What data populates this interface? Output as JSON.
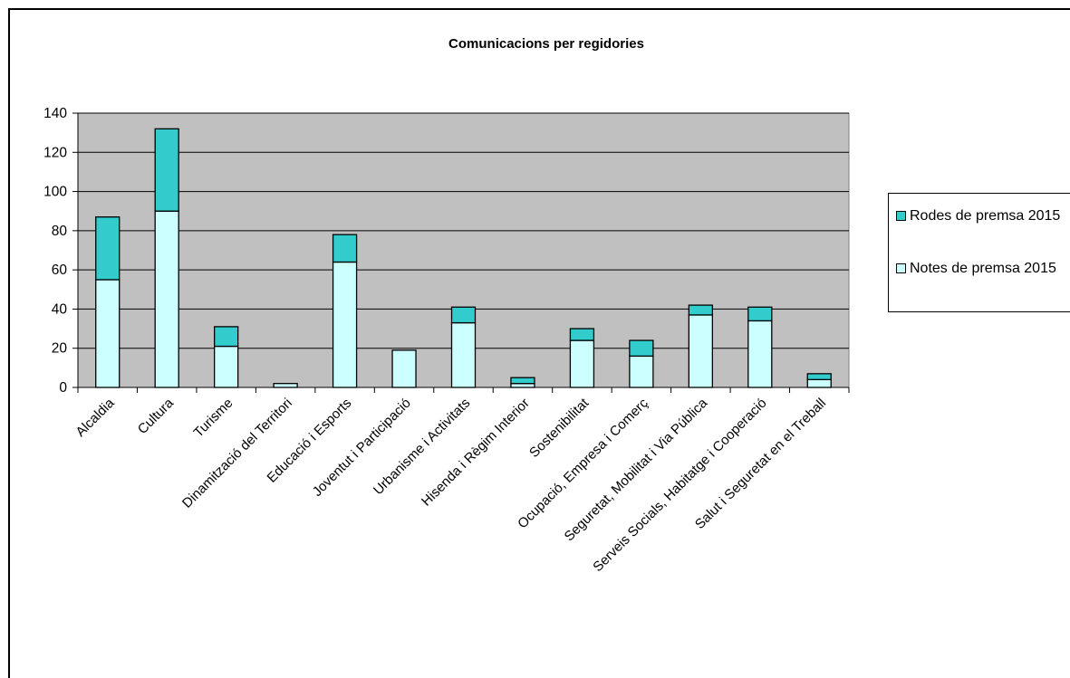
{
  "chart_data": {
    "type": "bar",
    "stacked": true,
    "title": "Comunicacions per regidories",
    "xlabel": "",
    "ylabel": "",
    "ylim": [
      0,
      140
    ],
    "yticks": [
      0,
      20,
      40,
      60,
      80,
      100,
      120,
      140
    ],
    "grid": true,
    "legend_position": "right",
    "categories": [
      "Alcaldia",
      "Cultura",
      "Turisme",
      "Dinamització del Territori",
      "Educació i Esports",
      "Joventut i Participació",
      "Urbanisme i Activitats",
      "Hisenda i Règim Interior",
      "Sostenibilitat",
      "Ocupació, Empresa i Comerç",
      "Seguretat, Mobilitat i Via Pública",
      "Serveis Socials, Habitatge i Cooperació",
      "Salut i Seguretat en el Treball"
    ],
    "series": [
      {
        "name": "Notes de premsa 2015",
        "color": "#ccffff",
        "values": [
          55,
          90,
          21,
          2,
          64,
          19,
          33,
          2,
          24,
          16,
          37,
          34,
          4
        ]
      },
      {
        "name": "Rodes de premsa 2015",
        "color": "#33cccc",
        "values": [
          32,
          42,
          10,
          0,
          14,
          0,
          8,
          3,
          6,
          8,
          5,
          7,
          3
        ]
      }
    ],
    "legend_order": [
      "Rodes de premsa 2015",
      "Notes de premsa 2015"
    ]
  },
  "colors": {
    "plot_background": "#c0c0c0",
    "gridline": "#000000"
  }
}
